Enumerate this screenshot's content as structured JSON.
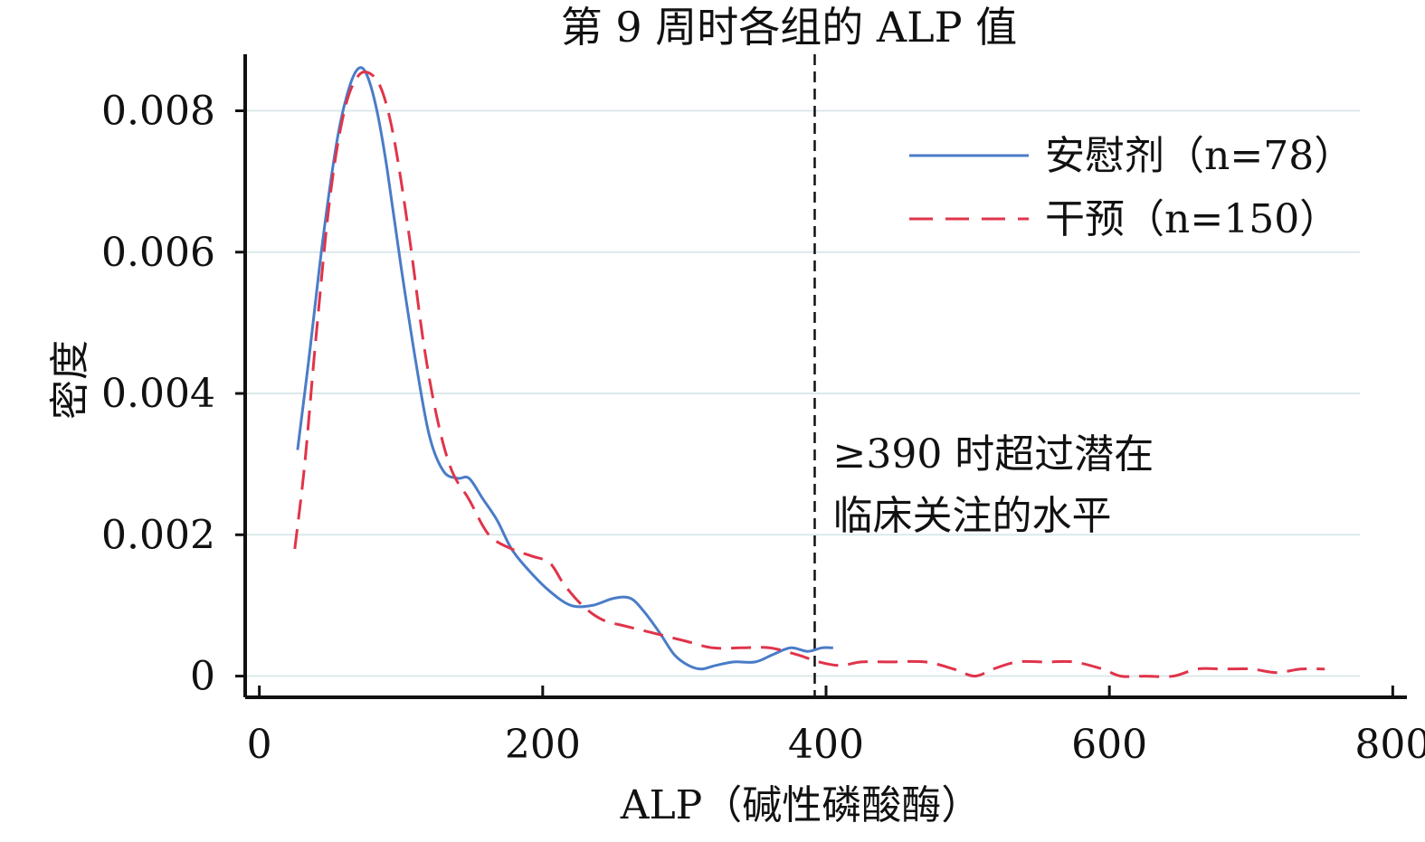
{
  "chart_data": {
    "type": "line",
    "title": "第 9 周时各组的 ALP 值",
    "xlabel": "ALP（碱性磷酸酶）",
    "ylabel": "密度",
    "xlim": [
      -10,
      810
    ],
    "ylim": [
      -0.0003,
      0.0088
    ],
    "x_ticks": [
      0,
      200,
      400,
      600,
      800
    ],
    "x_tick_labels": [
      "0",
      "200",
      "400",
      "600",
      "800"
    ],
    "y_ticks": [
      0,
      0.002,
      0.004,
      0.006,
      0.008
    ],
    "y_tick_labels": [
      "0",
      "0.002",
      "0.004",
      "0.006",
      "0.008"
    ],
    "grid": "horizontal",
    "legend_position": "top-right",
    "series": [
      {
        "name": "安慰剂（n=78）",
        "color": "#4a7cc7",
        "dash": "solid",
        "points": [
          [
            27,
            0.0032
          ],
          [
            35,
            0.0045
          ],
          [
            45,
            0.0062
          ],
          [
            55,
            0.0076
          ],
          [
            63,
            0.0083
          ],
          [
            70,
            0.0086
          ],
          [
            76,
            0.0085
          ],
          [
            83,
            0.008
          ],
          [
            90,
            0.0072
          ],
          [
            100,
            0.0058
          ],
          [
            110,
            0.0045
          ],
          [
            120,
            0.0034
          ],
          [
            130,
            0.0029
          ],
          [
            140,
            0.0028
          ],
          [
            148,
            0.0028
          ],
          [
            158,
            0.0025
          ],
          [
            168,
            0.0022
          ],
          [
            178,
            0.0018
          ],
          [
            190,
            0.0015
          ],
          [
            205,
            0.0012
          ],
          [
            220,
            0.001
          ],
          [
            235,
            0.001
          ],
          [
            250,
            0.0011
          ],
          [
            262,
            0.0011
          ],
          [
            272,
            0.0009
          ],
          [
            283,
            0.0006
          ],
          [
            293,
            0.0003
          ],
          [
            303,
            0.00015
          ],
          [
            312,
            0.0001
          ],
          [
            322,
            0.00015
          ],
          [
            335,
            0.0002
          ],
          [
            350,
            0.0002
          ],
          [
            362,
            0.0003
          ],
          [
            375,
            0.0004
          ],
          [
            387,
            0.00035
          ],
          [
            397,
            0.0004
          ],
          [
            405,
            0.0004
          ]
        ]
      },
      {
        "name": "干预（n=150）",
        "color": "#e0344a",
        "dash": "dashed",
        "points": [
          [
            25,
            0.0018
          ],
          [
            32,
            0.003
          ],
          [
            40,
            0.0048
          ],
          [
            50,
            0.0068
          ],
          [
            60,
            0.008
          ],
          [
            70,
            0.0085
          ],
          [
            80,
            0.0085
          ],
          [
            88,
            0.0082
          ],
          [
            96,
            0.0075
          ],
          [
            106,
            0.0062
          ],
          [
            116,
            0.0047
          ],
          [
            126,
            0.0036
          ],
          [
            136,
            0.0029
          ],
          [
            148,
            0.0025
          ],
          [
            162,
            0.002
          ],
          [
            178,
            0.0018
          ],
          [
            192,
            0.0017
          ],
          [
            205,
            0.0016
          ],
          [
            215,
            0.0013
          ],
          [
            228,
            0.001
          ],
          [
            242,
            0.0008
          ],
          [
            260,
            0.0007
          ],
          [
            280,
            0.0006
          ],
          [
            300,
            0.0005
          ],
          [
            320,
            0.0004
          ],
          [
            340,
            0.0004
          ],
          [
            360,
            0.0004
          ],
          [
            380,
            0.0003
          ],
          [
            395,
            0.0002
          ],
          [
            410,
            0.00015
          ],
          [
            425,
            0.0002
          ],
          [
            445,
            0.0002
          ],
          [
            470,
            0.0002
          ],
          [
            490,
            0.0001
          ],
          [
            505,
            0.0
          ],
          [
            518,
            0.0001
          ],
          [
            535,
            0.0002
          ],
          [
            555,
            0.0002
          ],
          [
            575,
            0.0002
          ],
          [
            595,
            0.0001
          ],
          [
            608,
            0.0
          ],
          [
            625,
            0.0
          ],
          [
            645,
            0.0
          ],
          [
            662,
            0.0001
          ],
          [
            680,
            0.0001
          ],
          [
            700,
            0.0001
          ],
          [
            718,
            5e-05
          ],
          [
            735,
            0.0001
          ],
          [
            752,
            0.0001
          ]
        ]
      }
    ],
    "reference_line": {
      "x": 392,
      "dash": "dashed",
      "color": "#111111",
      "annotation": [
        "≥390 时超过潜在",
        "临床关注的水平"
      ]
    }
  }
}
